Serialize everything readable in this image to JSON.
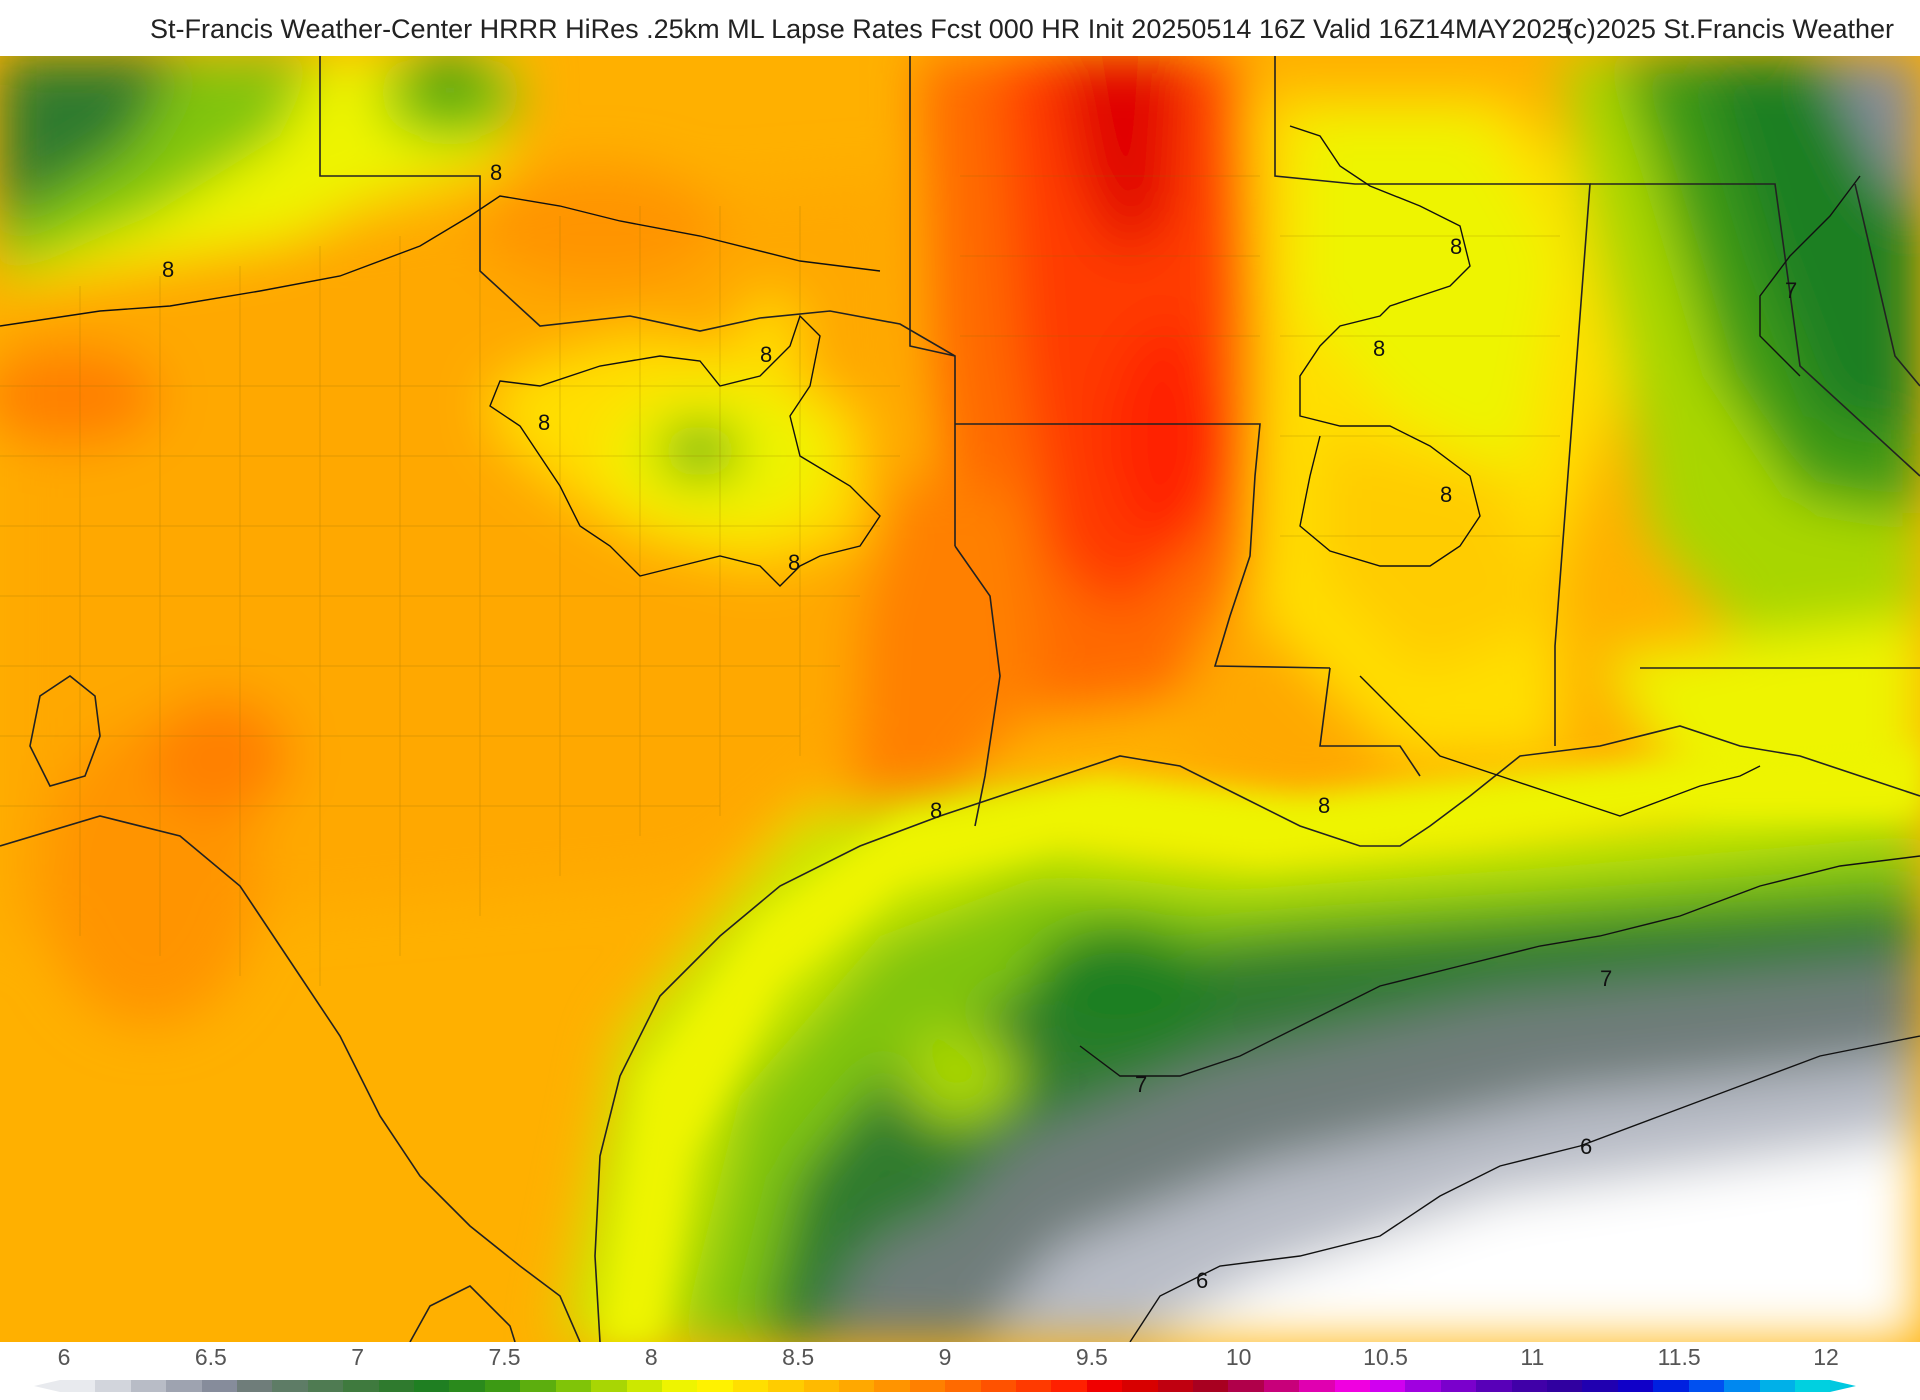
{
  "header": {
    "title": "St-Francis Weather-Center HRRR HiRes .25km ML Lapse Rates  Fcst 000 HR Init 20250514 16Z  Valid 16Z14MAY2025",
    "copyright": "(c)2025 St.Francis Weather"
  },
  "map": {
    "contour_labels": [
      "8",
      "8",
      "8",
      "8",
      "8",
      "8",
      "8",
      "8",
      "8",
      "8",
      "7",
      "7",
      "7",
      "6",
      "6"
    ]
  },
  "legend": {
    "ticks": [
      "6",
      "6.5",
      "7",
      "7.5",
      "8",
      "8.5",
      "9",
      "9.5",
      "10",
      "10.5",
      "11",
      "11.5",
      "12"
    ],
    "colors": [
      "#e8eaee",
      "#d2d5dc",
      "#b8bcc6",
      "#9ea3b0",
      "#868c9b",
      "#6f7d7a",
      "#5e7c66",
      "#4f7b52",
      "#3f7a3e",
      "#2f7a2e",
      "#1f7f22",
      "#2a8a1c",
      "#3c9a14",
      "#5cae0e",
      "#80c408",
      "#a8d604",
      "#cce800",
      "#eef400",
      "#fff200",
      "#ffdf00",
      "#ffcc00",
      "#ffba00",
      "#ffa800",
      "#ff9400",
      "#ff8000",
      "#ff6a00",
      "#ff5200",
      "#ff3a00",
      "#ff2000",
      "#f00000",
      "#d80000",
      "#c00010",
      "#a80020",
      "#b0004a",
      "#c8007a",
      "#e000b0",
      "#f000e0",
      "#d000f0",
      "#a000e0",
      "#7a00cc",
      "#5800b8",
      "#4000a8",
      "#3000a0",
      "#2000b0",
      "#1000c8",
      "#0020e0",
      "#0050f0",
      "#0088f0",
      "#00b0e8",
      "#00d0e0"
    ],
    "low_color": "#e8eaee",
    "high_color": "#00c8e0"
  }
}
